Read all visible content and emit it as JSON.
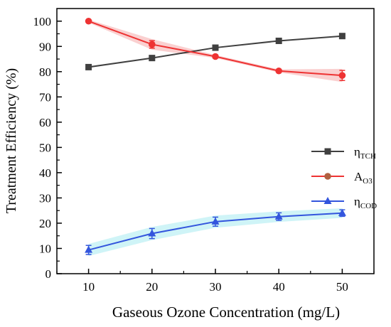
{
  "chart_data": {
    "type": "line",
    "xlabel": "Gaseous Ozone Concentration (mg/L)",
    "ylabel": "Treatment Efficiency (%)",
    "x": [
      10,
      20,
      30,
      40,
      50
    ],
    "xlim": [
      5,
      55
    ],
    "ylim": [
      0,
      105
    ],
    "x_ticks": [
      "10",
      "20",
      "30",
      "40",
      "50"
    ],
    "y_ticks": [
      "0",
      "10",
      "20",
      "30",
      "40",
      "50",
      "60",
      "70",
      "80",
      "90",
      "100"
    ],
    "grid": false,
    "legend_position": "right-middle",
    "series": [
      {
        "name_main": "η",
        "name_sub": "TCH",
        "marker": "square",
        "color": "#404040",
        "values": [
          81.8,
          85.4,
          89.5,
          92.2,
          94.1
        ],
        "errors": [
          0,
          0,
          0,
          0,
          0
        ]
      },
      {
        "name_main": "A",
        "name_sub": "O3",
        "marker": "circle",
        "color": "#ee3333",
        "band_color": "#f9c8c8",
        "values": [
          100,
          90.8,
          86.0,
          80.3,
          78.5
        ],
        "errors": [
          0,
          1.5,
          0,
          0,
          2.0
        ]
      },
      {
        "name_main": "η",
        "name_sub": "COD",
        "marker": "triangle",
        "color": "#3355dd",
        "band_color": "#c7f2f6",
        "values": [
          9.4,
          15.9,
          20.6,
          22.6,
          24.0
        ],
        "errors": [
          1.8,
          2.0,
          1.8,
          1.5,
          1.3
        ]
      }
    ]
  }
}
